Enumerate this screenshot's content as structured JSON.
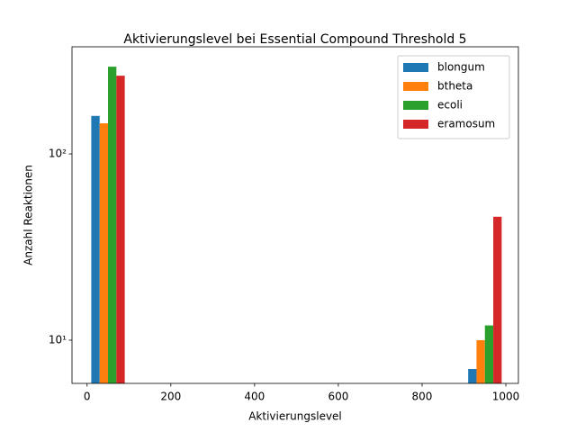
{
  "chart_data": {
    "type": "histogram",
    "title": "Aktivierungslevel bei Essential Compound Threshold 5",
    "x_label": "Aktivierungslevel",
    "y_label": "Anzahl Reaktionen",
    "bins": [
      0,
      100,
      200,
      300,
      400,
      500,
      600,
      700,
      800,
      900,
      1000
    ],
    "series": [
      {
        "name": "blongum",
        "color": "#1f77b4",
        "values": [
          160,
          0,
          0,
          0,
          0,
          0,
          0,
          0,
          0,
          7
        ]
      },
      {
        "name": "btheta",
        "color": "#ff7f0e",
        "values": [
          146,
          0,
          0,
          0,
          0,
          0,
          0,
          0,
          0,
          10
        ]
      },
      {
        "name": "ecoli",
        "color": "#2ca02c",
        "values": [
          294,
          0,
          0,
          0,
          0,
          0,
          0,
          0,
          0,
          12
        ]
      },
      {
        "name": "eramosum",
        "color": "#d62728",
        "values": [
          263,
          0,
          0,
          0,
          0,
          0,
          0,
          0,
          0,
          46
        ]
      }
    ],
    "xlim": [
      -36,
      1030
    ],
    "xticks": [
      0,
      200,
      400,
      600,
      800,
      1000
    ],
    "ylim": [
      5.86,
      376
    ],
    "yticks": [
      {
        "value": 10,
        "label": "10¹"
      },
      {
        "value": 100,
        "label": "10²"
      }
    ],
    "y_scale": "log",
    "legend": "upper right"
  }
}
